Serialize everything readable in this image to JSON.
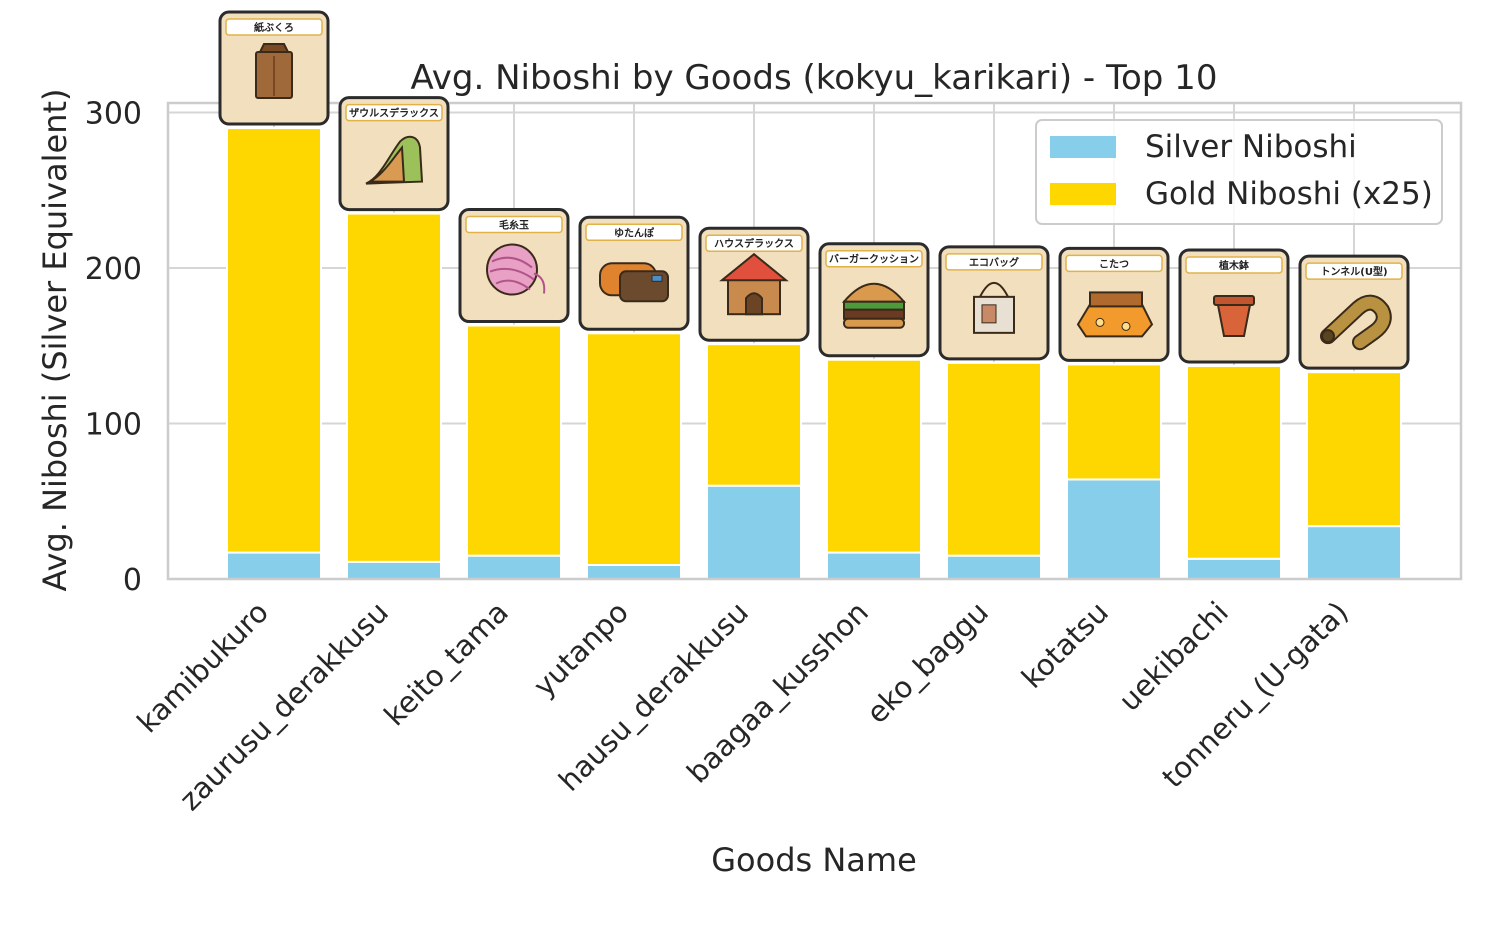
{
  "chart_data": {
    "type": "bar",
    "stacked": true,
    "title": "Avg. Niboshi by Goods (kokyu_karikari) - Top 10",
    "xlabel": "Goods Name",
    "ylabel": "Avg. Niboshi (Silver Equivalent)",
    "ylim": [
      0,
      310
    ],
    "yticks": [
      0,
      100,
      200,
      300
    ],
    "grid": true,
    "legend_position": "top-right",
    "categories": [
      "kamibukuro",
      "zaurusu_derakkusu",
      "keito_tama",
      "yutanpo",
      "hausu_derakkusu",
      "baagaa_kusshon",
      "eko_baggu",
      "kotatsu",
      "uekibachi",
      "tonneru_(U-gata)"
    ],
    "series": [
      {
        "name": "Silver Niboshi",
        "color": "#87ceeb",
        "values": [
          17,
          11,
          15,
          9,
          60,
          17,
          15,
          64,
          13,
          34
        ]
      },
      {
        "name": "Gold Niboshi (x25)",
        "color": "#ffd700",
        "values": [
          273,
          224,
          148,
          149,
          91,
          124,
          124,
          74,
          124,
          99
        ]
      }
    ],
    "item_cards": [
      {
        "label": "紙ぶくろ",
        "icon": "paper-bag-icon"
      },
      {
        "label": "ザウルスデラックス",
        "icon": "dinosaur-slide-icon"
      },
      {
        "label": "毛糸玉",
        "icon": "yarn-ball-icon"
      },
      {
        "label": "ゆたんぽ",
        "icon": "hot-water-bottle-icon"
      },
      {
        "label": "ハウスデラックス",
        "icon": "cat-house-icon"
      },
      {
        "label": "バーガークッション",
        "icon": "burger-cushion-icon"
      },
      {
        "label": "エコバッグ",
        "icon": "eco-bag-icon"
      },
      {
        "label": "こたつ",
        "icon": "kotatsu-icon"
      },
      {
        "label": "植木鉢",
        "icon": "flower-pot-icon"
      },
      {
        "label": "トンネル(U型)",
        "icon": "u-tunnel-icon"
      }
    ]
  }
}
